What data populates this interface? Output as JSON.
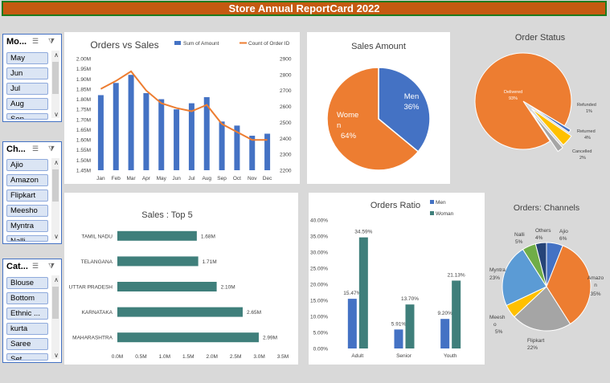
{
  "banner": {
    "title": "Store Annual ReportCard 2022"
  },
  "slicers": [
    {
      "key": "months",
      "title": "Mo...",
      "items": [
        "May",
        "Jun",
        "Jul",
        "Aug",
        "Sep"
      ]
    },
    {
      "key": "channels",
      "title": "Ch...",
      "items": [
        "Ajio",
        "Amazon",
        "Flipkart",
        "Meesho",
        "Myntra",
        "Nalli"
      ]
    },
    {
      "key": "category",
      "title": "Cat...",
      "items": [
        "Blouse",
        "Bottom",
        "Ethnic ...",
        "kurta",
        "Saree",
        "Set"
      ]
    }
  ],
  "colors": {
    "blue": "#4472c4",
    "orange": "#ed7d31",
    "teal": "#3f7f7b",
    "gray": "#a5a5a5",
    "yellow": "#ffc000",
    "lightblue": "#5b9bd5",
    "green": "#70ad47",
    "navy": "#264478"
  },
  "chart_data": [
    {
      "id": "orders_vs_sales",
      "type": "bar",
      "title": "Orders vs Sales",
      "categories": [
        "Jan",
        "Feb",
        "Mar",
        "Apr",
        "May",
        "Jun",
        "Jul",
        "Aug",
        "Sep",
        "Oct",
        "Nov",
        "Dec"
      ],
      "series": [
        {
          "name": "Sum of Amount",
          "type": "bar",
          "axis": "left",
          "values": [
            1.82,
            1.88,
            1.92,
            1.83,
            1.8,
            1.75,
            1.78,
            1.81,
            1.69,
            1.67,
            1.62,
            1.63
          ]
        },
        {
          "name": "Count of Order ID",
          "type": "line",
          "axis": "right",
          "values": [
            2710,
            2760,
            2820,
            2700,
            2620,
            2590,
            2570,
            2610,
            2490,
            2440,
            2390,
            2390
          ]
        }
      ],
      "yleft": {
        "min": 1.45,
        "max": 2.0,
        "ticks": [
          "2.00M",
          "1.95M",
          "1.90M",
          "1.85M",
          "1.80M",
          "1.75M",
          "1.70M",
          "1.65M",
          "1.60M",
          "1.55M",
          "1.50M",
          "1.45M"
        ]
      },
      "yright": {
        "min": 2200,
        "max": 2900,
        "ticks": [
          "2900",
          "2800",
          "2700",
          "2600",
          "2500",
          "2400",
          "2300",
          "2200"
        ]
      },
      "legend": "top-right"
    },
    {
      "id": "sales_amount",
      "type": "pie",
      "title": "Sales Amount",
      "slices": [
        {
          "name": "Men",
          "value": 36,
          "label": "Men",
          "pct": "36%"
        },
        {
          "name": "Women",
          "value": 64,
          "label": "Wome n",
          "pct": "64%"
        }
      ]
    },
    {
      "id": "order_status",
      "type": "pie",
      "title": "Order Status",
      "slices": [
        {
          "name": "Delivered",
          "value": 93,
          "label": "Delivered",
          "pct": "93%"
        },
        {
          "name": "Refunded",
          "value": 1,
          "label": "Refunded",
          "pct": "1%"
        },
        {
          "name": "Returned",
          "value": 4,
          "label": "Returned",
          "pct": "4%"
        },
        {
          "name": "Cancelled",
          "value": 2,
          "label": "Cancelled",
          "pct": "2%"
        }
      ]
    },
    {
      "id": "sales_top5",
      "type": "bar",
      "orientation": "horizontal",
      "title": "Sales : Top 5",
      "categories": [
        "TAMIL NADU",
        "TELANGANA",
        "UTTAR PRADESH",
        "KARNATAKA",
        "MAHARASHTRA"
      ],
      "values": [
        1.68,
        1.71,
        2.1,
        2.65,
        2.99
      ],
      "value_labels": [
        "1.68M",
        "1.71M",
        "2.10M",
        "2.65M",
        "2.99M"
      ],
      "xlim": [
        0,
        3.5
      ],
      "ticks": [
        "0.0M",
        "0.5M",
        "1.0M",
        "1.5M",
        "2.0M",
        "2.5M",
        "3.0M",
        "3.5M"
      ]
    },
    {
      "id": "orders_ratio",
      "type": "bar",
      "title": "Orders Ratio",
      "categories": [
        "Adult",
        "Senior",
        "Youth"
      ],
      "series": [
        {
          "name": "Men",
          "values": [
            15.47,
            5.91,
            9.2
          ],
          "labels": [
            "15.47%",
            "5.91%",
            "9.20%"
          ]
        },
        {
          "name": "Woman",
          "values": [
            34.59,
            13.7,
            21.13
          ],
          "labels": [
            "34.59%",
            "13.70%",
            "21.13%"
          ]
        }
      ],
      "ylim": [
        0,
        40
      ],
      "ticks": [
        "40.00%",
        "35.00%",
        "30.00%",
        "25.00%",
        "20.00%",
        "15.00%",
        "10.00%",
        "5.00%",
        "0.00%"
      ]
    },
    {
      "id": "orders_channels",
      "type": "pie",
      "title": "Orders: Channels",
      "slices": [
        {
          "name": "Ajio",
          "value": 6,
          "label": "Ajio",
          "pct": "6%"
        },
        {
          "name": "Amazon",
          "value": 35,
          "label": "Amazo n",
          "pct": "35%"
        },
        {
          "name": "Flipkart",
          "value": 22,
          "label": "Flipkart",
          "pct": "22%"
        },
        {
          "name": "Meesho",
          "value": 5,
          "label": "Meesh o",
          "pct": "5%"
        },
        {
          "name": "Myntra",
          "value": 23,
          "label": "Myntra",
          "pct": "23%"
        },
        {
          "name": "Nalli",
          "value": 5,
          "label": "Nalli",
          "pct": "5%"
        },
        {
          "name": "Others",
          "value": 4,
          "label": "Others",
          "pct": "4%"
        }
      ]
    }
  ]
}
